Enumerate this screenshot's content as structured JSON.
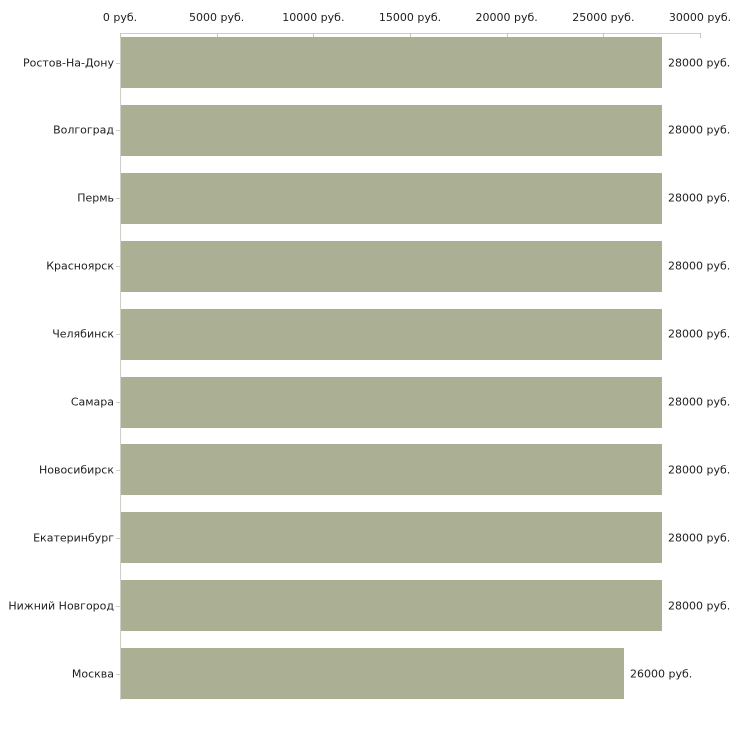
{
  "chart_data": {
    "type": "bar",
    "orientation": "horizontal",
    "title": "",
    "xlabel": "",
    "ylabel": "",
    "unit": "руб.",
    "xlim": [
      0,
      30000
    ],
    "grid": false,
    "legend": "none",
    "categories": [
      "Ростов-На-Дону",
      "Волгоград",
      "Пермь",
      "Красноярск",
      "Челябинск",
      "Самара",
      "Новосибирск",
      "Екатеринбург",
      "Нижний Новгород",
      "Москва"
    ],
    "values": [
      28000,
      28000,
      28000,
      28000,
      28000,
      28000,
      28000,
      28000,
      28000,
      26000
    ],
    "value_labels": [
      "28000 руб.",
      "28000 руб.",
      "28000 руб.",
      "28000 руб.",
      "28000 руб.",
      "28000 руб.",
      "28000 руб.",
      "28000 руб.",
      "28000 руб.",
      "26000 руб."
    ],
    "x_tick_values": [
      0,
      5000,
      10000,
      15000,
      20000,
      25000,
      30000
    ],
    "x_tick_labels": [
      "0 руб.",
      "5000 руб.",
      "10000 руб.",
      "15000 руб.",
      "20000 руб.",
      "25000 руб.",
      "30000 руб."
    ],
    "colors": {
      "bar": "#abb095",
      "axis_line": "#cfcfc7",
      "tick_mark": "#c6c9ad",
      "text": "#1e1e1e",
      "background": "#ffffff"
    }
  }
}
